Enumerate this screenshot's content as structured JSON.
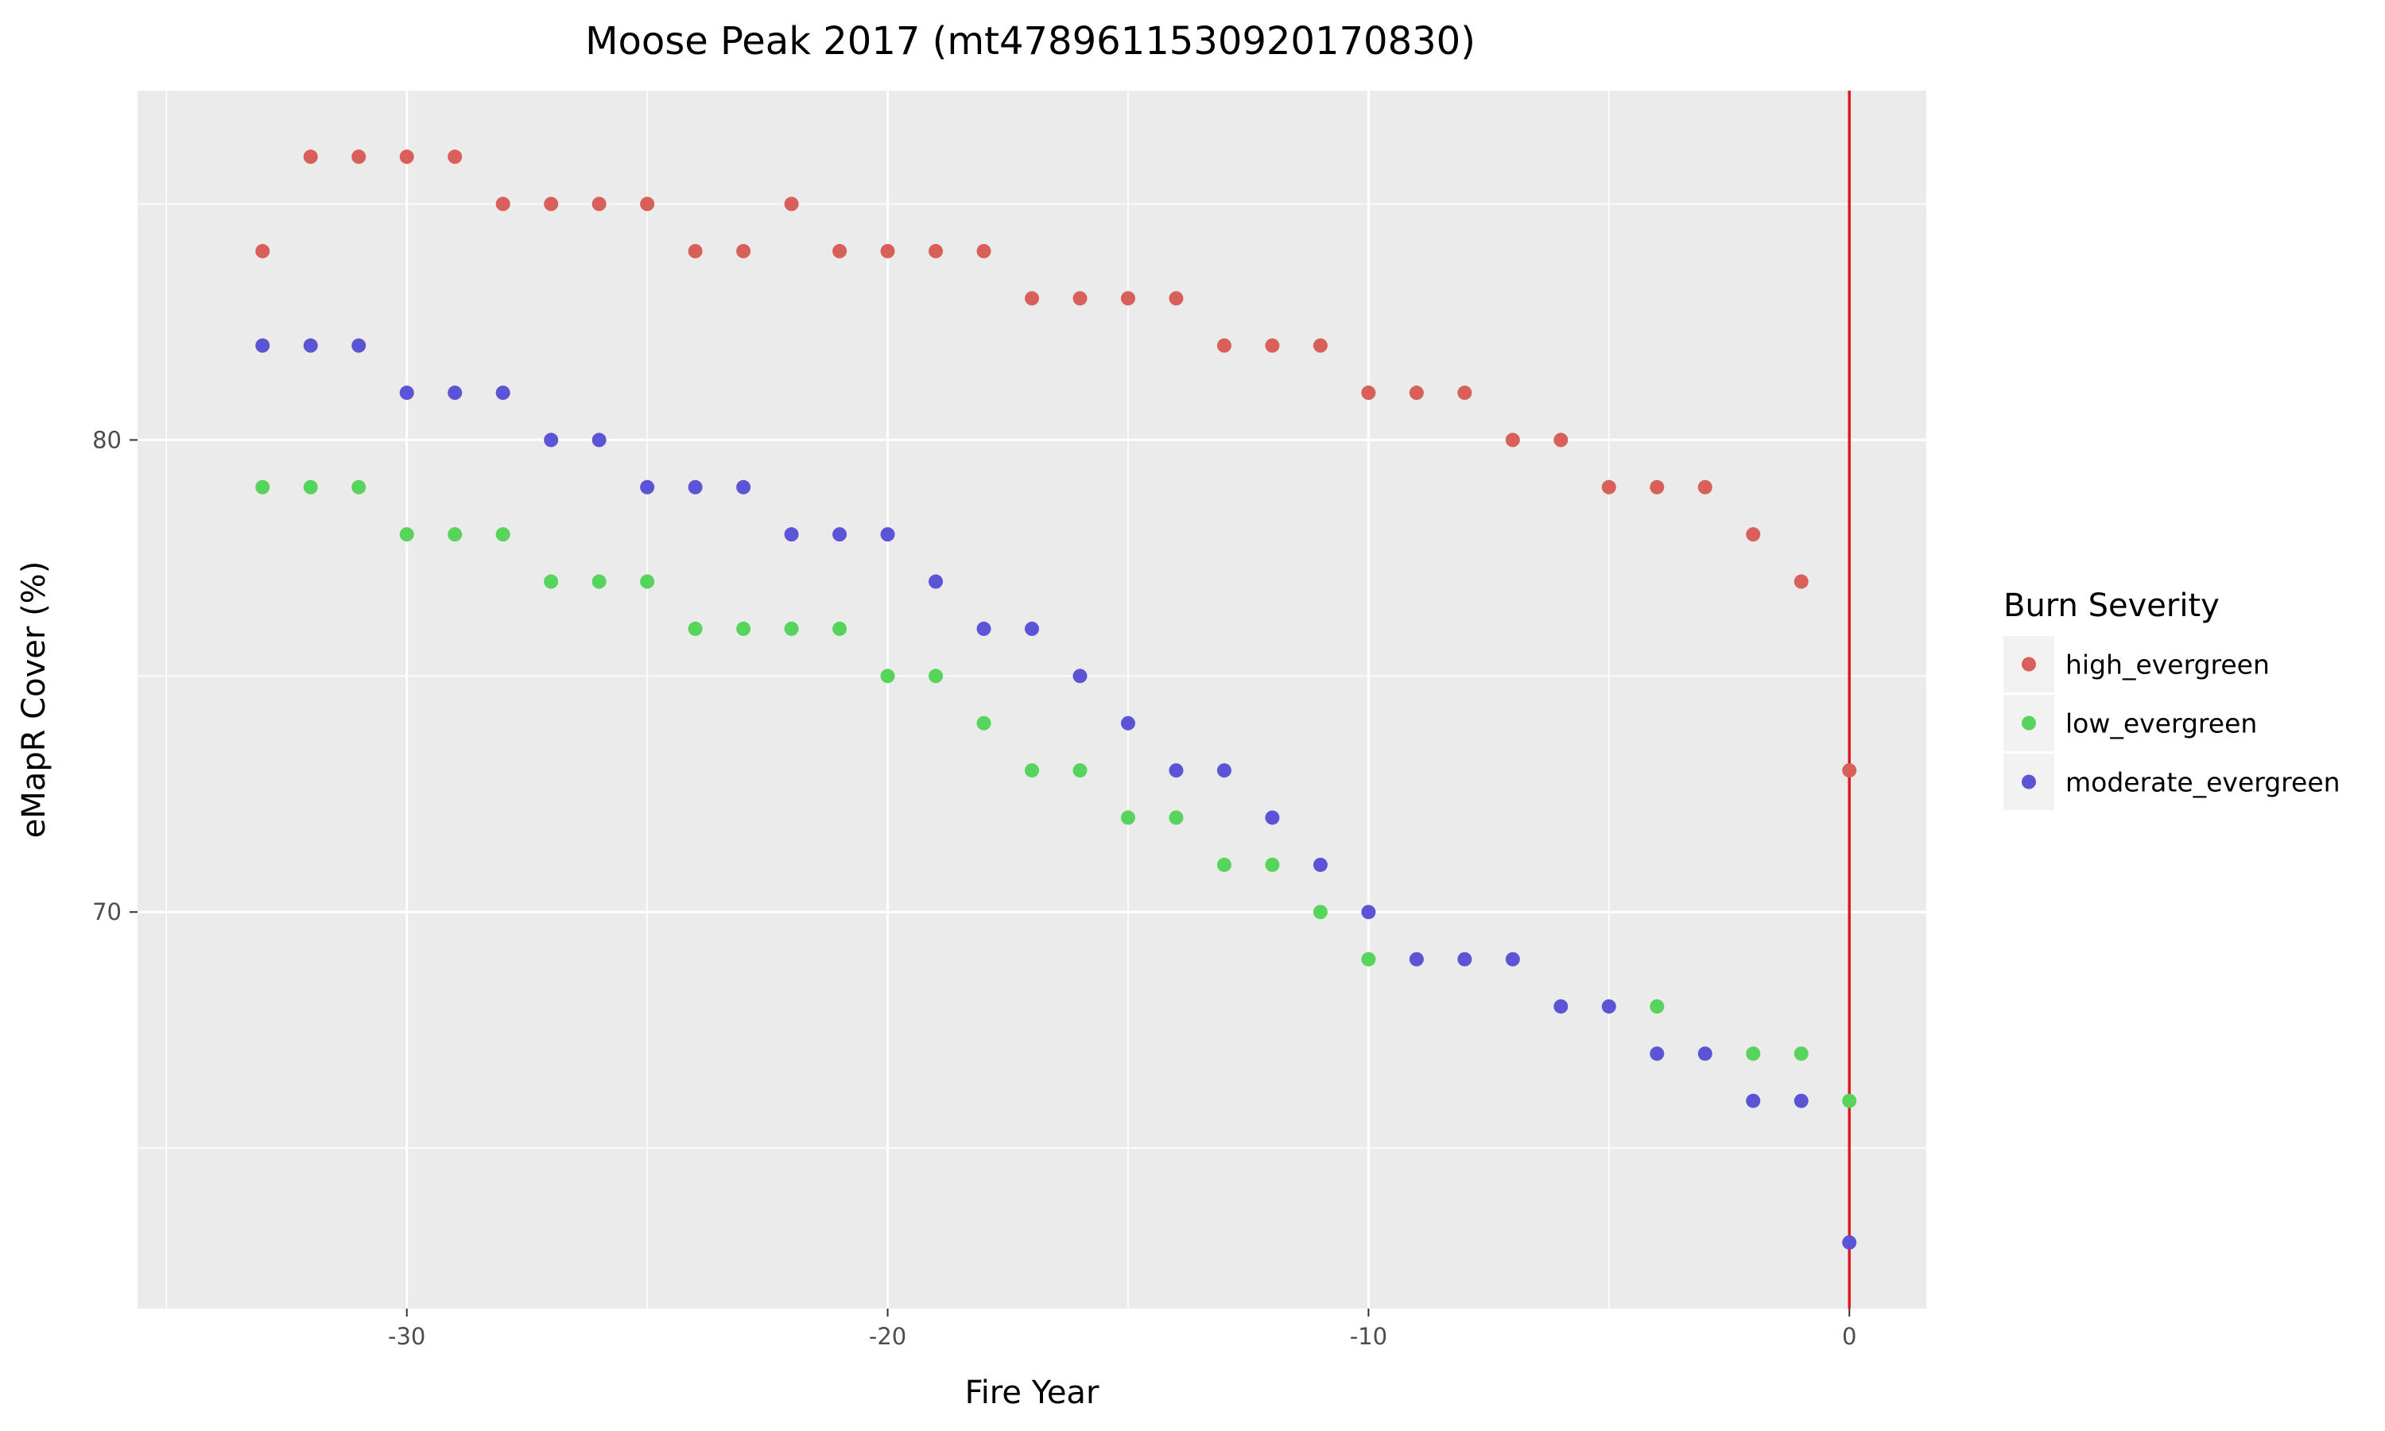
{
  "chart_data": {
    "type": "scatter",
    "title": "Moose Peak 2017 (mt4789611530920170830)",
    "xlabel": "Fire Year",
    "ylabel": "eMapR Cover (%)",
    "xlim": [
      -35.6,
      1.6
    ],
    "ylim": [
      61.6,
      87.4
    ],
    "x_ticks": [
      -30,
      -20,
      -10,
      0
    ],
    "x_tick_labels": [
      "-30",
      "-20",
      "-10",
      "0"
    ],
    "y_ticks": [
      70,
      80
    ],
    "y_tick_labels": [
      "70",
      "80"
    ],
    "grid": true,
    "vline": {
      "x": 0,
      "color": "#E31A1C"
    },
    "legend": {
      "title": "Burn Severity",
      "position": "right"
    },
    "series": [
      {
        "name": "high_evergreen",
        "color": "#D95F5A",
        "x": [
          -33,
          -32,
          -31,
          -30,
          -29,
          -28,
          -27,
          -26,
          -25,
          -24,
          -23,
          -22,
          -21,
          -20,
          -19,
          -18,
          -17,
          -16,
          -15,
          -14,
          -13,
          -12,
          -11,
          -10,
          -9,
          -8,
          -7,
          -6,
          -5,
          -4,
          -3,
          -2,
          -1,
          0
        ],
        "y": [
          84,
          86,
          86,
          86,
          86,
          85,
          85,
          85,
          85,
          84,
          84,
          85,
          84,
          84,
          84,
          84,
          83,
          83,
          83,
          83,
          82,
          82,
          82,
          81,
          81,
          81,
          80,
          80,
          79,
          79,
          79,
          78,
          77,
          73
        ]
      },
      {
        "name": "low_evergreen",
        "color": "#56D45C",
        "x": [
          -33,
          -32,
          -31,
          -30,
          -29,
          -28,
          -27,
          -26,
          -25,
          -24,
          -23,
          -22,
          -21,
          -20,
          -19,
          -18,
          -17,
          -16,
          -15,
          -14,
          -13,
          -12,
          -11,
          -10,
          -4,
          -2,
          -1,
          0
        ],
        "y": [
          79,
          79,
          79,
          78,
          78,
          78,
          77,
          77,
          77,
          76,
          76,
          76,
          76,
          75,
          75,
          74,
          73,
          73,
          72,
          72,
          71,
          71,
          70,
          69,
          68,
          67,
          67,
          66
        ]
      },
      {
        "name": "moderate_evergreen",
        "color": "#5B55D6",
        "x": [
          -33,
          -32,
          -31,
          -30,
          -29,
          -28,
          -27,
          -26,
          -25,
          -24,
          -23,
          -22,
          -21,
          -20,
          -19,
          -18,
          -17,
          -16,
          -15,
          -14,
          -13,
          -12,
          -11,
          -10,
          -9,
          -8,
          -7,
          -6,
          -5,
          -4,
          -3,
          -2,
          -1,
          0
        ],
        "y": [
          82,
          82,
          82,
          81,
          81,
          81,
          80,
          80,
          79,
          79,
          79,
          78,
          78,
          78,
          77,
          76,
          76,
          75,
          74,
          73,
          73,
          72,
          71,
          70,
          69,
          69,
          69,
          68,
          68,
          67,
          67,
          66,
          66,
          63
        ]
      }
    ]
  }
}
